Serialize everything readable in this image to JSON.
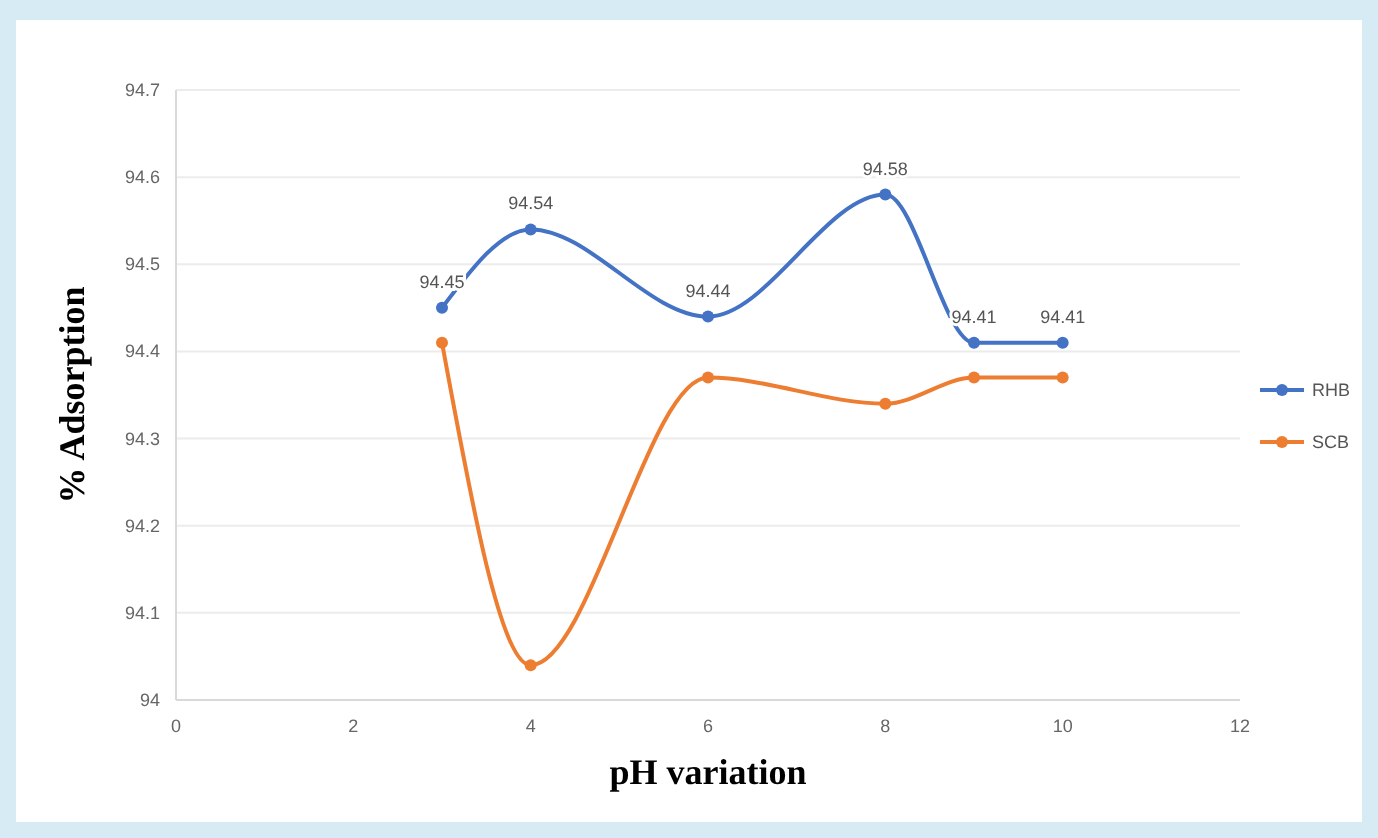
{
  "chart_data": {
    "type": "line",
    "xlabel": "pH variation",
    "ylabel": "% Adsorption",
    "xlim": [
      0,
      12
    ],
    "xticks": [
      0,
      2,
      4,
      6,
      8,
      10,
      12
    ],
    "ylim": [
      94,
      94.7
    ],
    "yticks": [
      94,
      94.1,
      94.2,
      94.3,
      94.4,
      94.5,
      94.6,
      94.7
    ],
    "x": [
      3,
      4,
      6,
      8,
      9,
      10
    ],
    "series": [
      {
        "name": "RHB",
        "color": "#4472c4",
        "values": [
          94.45,
          94.54,
          94.44,
          94.58,
          94.41,
          94.41
        ],
        "value_labels": [
          "94.45",
          "94.54",
          "94.44",
          "94.58",
          "94.41",
          "94.41"
        ]
      },
      {
        "name": "SCB",
        "color": "#ed7d31",
        "values": [
          94.41,
          94.04,
          94.37,
          94.34,
          94.37,
          94.37
        ]
      }
    ],
    "grid": "y",
    "legend": "right",
    "marker": "circle",
    "line_style": "solid"
  }
}
